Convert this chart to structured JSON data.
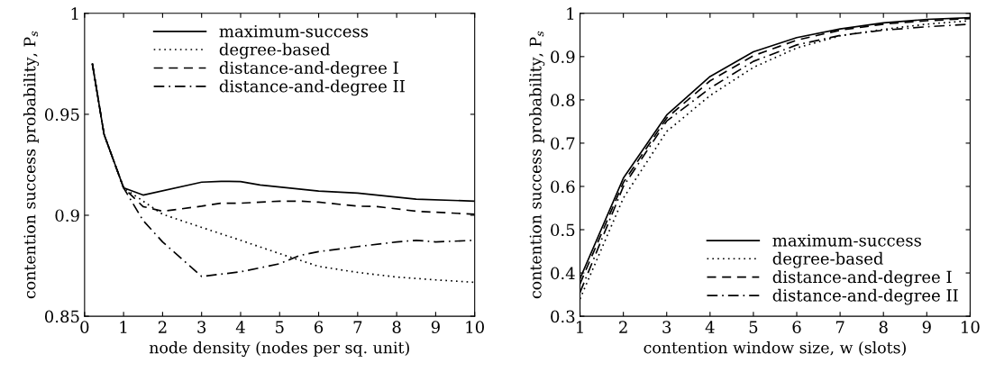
{
  "chart_data": [
    {
      "type": "line",
      "xlabel": "node density (nodes per sq. unit)",
      "ylabel": "contention success probability, P$_{s}$",
      "xlim": [
        0,
        10
      ],
      "ylim": [
        0.85,
        1
      ],
      "xticks": [
        0,
        1,
        2,
        3,
        4,
        5,
        6,
        7,
        8,
        9,
        10
      ],
      "yticks": [
        0.85,
        0.9,
        0.95,
        1
      ],
      "grid": false,
      "legend": "top",
      "series": [
        {
          "name": "maximum-success",
          "color": "#000000",
          "line_style": "solid",
          "x": [
            0.2,
            0.5,
            1,
            1.5,
            3,
            3.5,
            4,
            4.5,
            5,
            5.5,
            6,
            7,
            7.5,
            8.5,
            10
          ],
          "values": [
            0.975,
            0.94,
            0.9136,
            0.91,
            0.9164,
            0.9168,
            0.9167,
            0.915,
            0.914,
            0.913,
            0.912,
            0.911,
            0.91,
            0.908,
            0.907
          ]
        },
        {
          "name": "degree-based",
          "color": "#000000",
          "line_style": "dotted",
          "x": [
            0.2,
            0.5,
            1,
            1.5,
            2,
            3,
            4,
            5,
            6,
            7,
            8,
            9,
            10
          ],
          "values": [
            0.975,
            0.94,
            0.9136,
            0.907,
            0.9005,
            0.894,
            0.8876,
            0.881,
            0.8747,
            0.8717,
            0.8694,
            0.868,
            0.8668
          ]
        },
        {
          "name": "distance-and-degree I",
          "color": "#000000",
          "line_style": "dashed",
          "x": [
            0.2,
            0.5,
            1,
            1.5,
            2,
            3,
            3.5,
            4,
            5,
            5.5,
            6,
            7,
            7.5,
            8.5,
            10
          ],
          "values": [
            0.975,
            0.94,
            0.9136,
            0.9043,
            0.902,
            0.9045,
            0.906,
            0.906,
            0.907,
            0.907,
            0.9065,
            0.9045,
            0.9043,
            0.902,
            0.9005
          ]
        },
        {
          "name": "distance-and-degree II",
          "color": "#000000",
          "line_style": "dashdot",
          "x": [
            0.2,
            0.5,
            1,
            1.5,
            2,
            3,
            4,
            5,
            5.5,
            6,
            7,
            8,
            8.5,
            9,
            10
          ],
          "values": [
            0.975,
            0.94,
            0.9136,
            0.8974,
            0.8868,
            0.8697,
            0.872,
            0.876,
            0.88,
            0.882,
            0.8845,
            0.8868,
            0.8876,
            0.8868,
            0.8876
          ]
        }
      ]
    },
    {
      "type": "line",
      "xlabel": "contention window size, w (slots)",
      "ylabel": "contention success probability, P$_{s}$",
      "xlim": [
        1,
        10
      ],
      "ylim": [
        0.3,
        1
      ],
      "xticks": [
        1,
        2,
        3,
        4,
        5,
        6,
        7,
        8,
        9,
        10
      ],
      "yticks": [
        0.3,
        0.4,
        0.5,
        0.6,
        0.7,
        0.8,
        0.9,
        1
      ],
      "grid": false,
      "legend": "bottom right",
      "series": [
        {
          "name": "maximum-success",
          "color": "#000000",
          "line_style": "solid",
          "x": [
            1,
            2,
            3,
            4,
            5,
            6,
            7,
            8,
            9,
            10
          ],
          "values": [
            0.387,
            0.619,
            0.765,
            0.854,
            0.911,
            0.944,
            0.964,
            0.978,
            0.986,
            0.99
          ]
        },
        {
          "name": "degree-based",
          "color": "#000000",
          "line_style": "dotted",
          "x": [
            1,
            2,
            3,
            4,
            5,
            6,
            7,
            8,
            9,
            10
          ],
          "values": [
            0.34,
            0.573,
            0.727,
            0.81,
            0.875,
            0.92,
            0.948,
            0.963,
            0.975,
            0.983
          ]
        },
        {
          "name": "distance-and-degree I",
          "color": "#000000",
          "line_style": "dashed",
          "x": [
            1,
            2,
            3,
            4,
            5,
            6,
            7,
            8,
            9,
            10
          ],
          "values": [
            0.375,
            0.609,
            0.758,
            0.844,
            0.902,
            0.938,
            0.961,
            0.975,
            0.983,
            0.988
          ]
        },
        {
          "name": "distance-and-degree II",
          "color": "#000000",
          "line_style": "dashdot",
          "x": [
            1,
            2,
            3,
            4,
            5,
            6,
            7,
            8,
            9,
            10
          ],
          "values": [
            0.355,
            0.6,
            0.751,
            0.827,
            0.889,
            0.927,
            0.949,
            0.961,
            0.969,
            0.975
          ]
        }
      ]
    }
  ]
}
